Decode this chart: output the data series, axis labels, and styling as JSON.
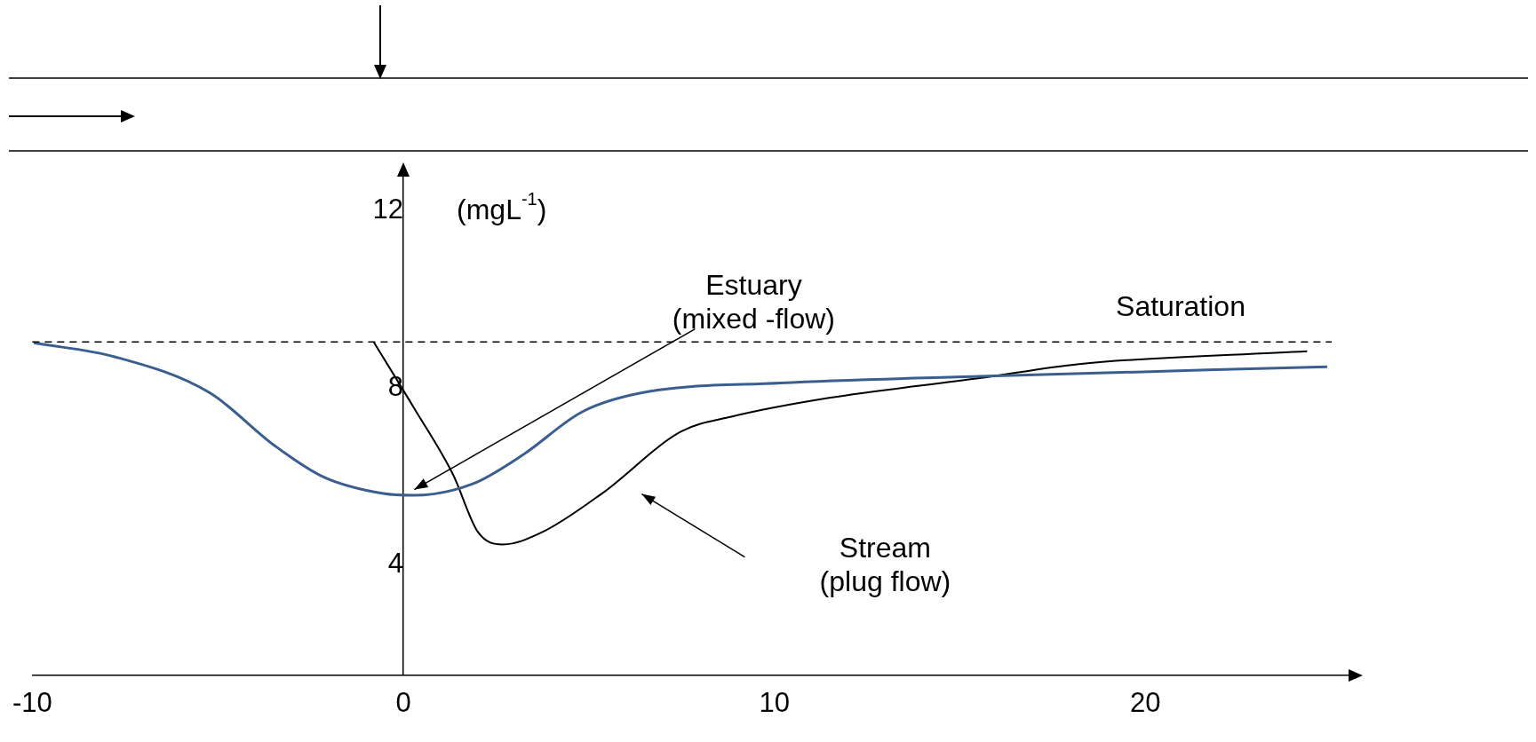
{
  "chart_data": {
    "type": "line",
    "ylabel": "(mgL$^{-1}$)",
    "xlim": [
      -10,
      25.5
    ],
    "xticks": [
      -10,
      0,
      10,
      20
    ],
    "ylim": [
      1.5,
      12.8
    ],
    "yticks": [
      4,
      8,
      12
    ],
    "grid": false,
    "legend": false,
    "marker": "none",
    "series": [
      {
        "color": "#3a5f8f",
        "x": [
          -9.96,
          -7.76,
          -5.22,
          -3.48,
          -2.14,
          -0.54,
          0.27,
          1.87,
          3.21,
          4.82,
          6.43,
          10.17,
          15.53,
          24.9
        ],
        "values": [
          9.02,
          8.7,
          7.89,
          6.7,
          5.98,
          5.61,
          5.57,
          5.83,
          6.48,
          7.46,
          7.89,
          8.11,
          8.26,
          8.48
        ]
      },
      {
        "color": "#000000",
        "x": [
          -0.8,
          0.27,
          1.34,
          2.01,
          2.68,
          3.75,
          5.35,
          7.5,
          8.84,
          11.51,
          15.53,
          18.21,
          24.36
        ],
        "values": [
          9.04,
          7.57,
          6.04,
          4.74,
          4.46,
          4.74,
          5.61,
          7.02,
          7.35,
          7.78,
          8.22,
          8.54,
          8.83
        ]
      }
    ],
    "ref_lines": [
      {
        "axis": "y",
        "value": 9.04,
        "label": "Saturation",
        "line_style": "dashed",
        "color": "#000000"
      }
    ],
    "annotations": [
      {
        "text": "Estuary (mixed -flow)",
        "x": 0.2,
        "y": 5.62
      },
      "Stream (plug flow)"
    ]
  }
}
